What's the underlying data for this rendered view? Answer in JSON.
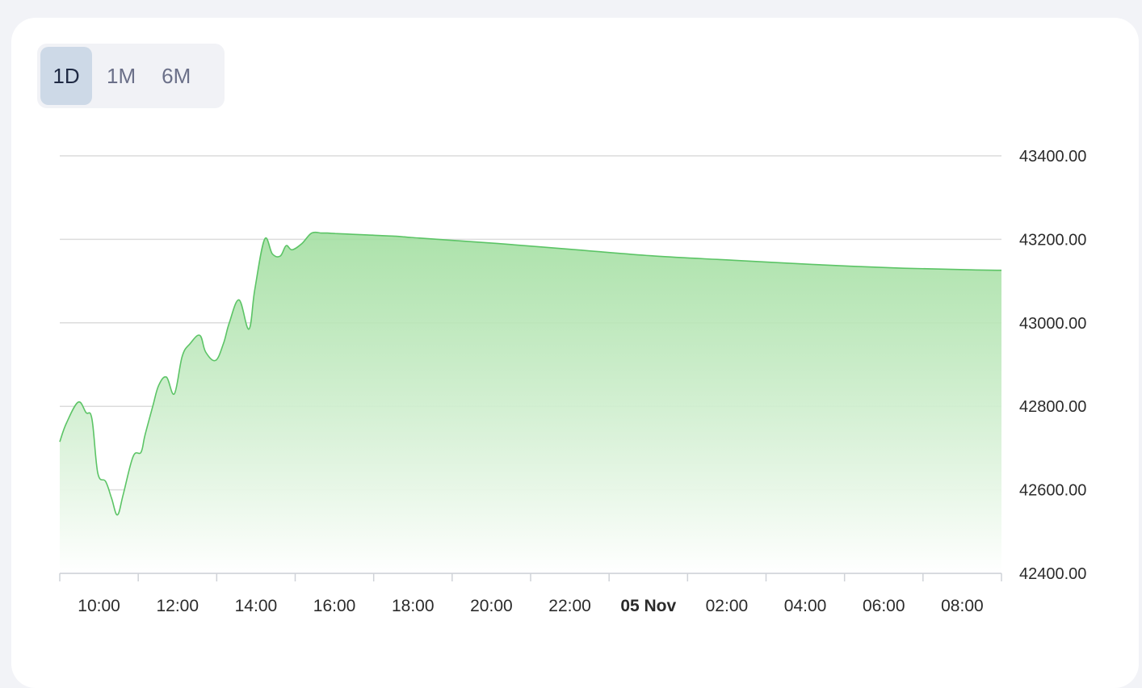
{
  "range_tabs": {
    "items": [
      {
        "label": "1D",
        "active": true
      },
      {
        "label": "1M",
        "active": false
      },
      {
        "label": "6M",
        "active": false
      }
    ]
  },
  "colors": {
    "line": "#5cc466",
    "fill_top": "#9edd9c",
    "fill_bottom": "#ffffff",
    "grid": "#dcdcdc",
    "tab_active_bg": "#cdd9e7"
  },
  "chart_data": {
    "type": "area",
    "ylim": [
      42400,
      43400
    ],
    "yticks": [
      "43400.00",
      "43200.00",
      "43000.00",
      "42800.00",
      "42600.00",
      "42400.00"
    ],
    "ytick_values": [
      43400,
      43200,
      43000,
      42800,
      42600,
      42400
    ],
    "xlim_hours": [
      8.83,
      32.83
    ],
    "xticks": [
      {
        "label": "10:00",
        "hour": 10,
        "bold": false
      },
      {
        "label": "12:00",
        "hour": 12,
        "bold": false
      },
      {
        "label": "14:00",
        "hour": 14,
        "bold": false
      },
      {
        "label": "16:00",
        "hour": 16,
        "bold": false
      },
      {
        "label": "18:00",
        "hour": 18,
        "bold": false
      },
      {
        "label": "20:00",
        "hour": 20,
        "bold": false
      },
      {
        "label": "22:00",
        "hour": 22,
        "bold": false
      },
      {
        "label": "05 Nov",
        "hour": 24,
        "bold": true
      },
      {
        "label": "02:00",
        "hour": 26,
        "bold": false
      },
      {
        "label": "04:00",
        "hour": 28,
        "bold": false
      },
      {
        "label": "06:00",
        "hour": 30,
        "bold": false
      },
      {
        "label": "08:00",
        "hour": 32,
        "bold": false
      }
    ],
    "grid": true,
    "series": [
      {
        "x": [
          8.83,
          9.0,
          9.3,
          9.5,
          9.65,
          9.8,
          10.0,
          10.15,
          10.3,
          10.45,
          10.7,
          10.9,
          11.0,
          11.2,
          11.35,
          11.55,
          11.75,
          11.95,
          12.15,
          12.4,
          12.55,
          12.8,
          13.0,
          13.15,
          13.4,
          13.65,
          13.8,
          14.05,
          14.25,
          14.45,
          14.6,
          14.75,
          15.0,
          15.25,
          15.5,
          15.65,
          15.85,
          16.1,
          16.3,
          16.55,
          16.8,
          17.0,
          17.3,
          17.6,
          18.0,
          20.0,
          22.0,
          24.0,
          26.0,
          28.0,
          30.0,
          32.0,
          32.83
        ],
        "y": [
          42715,
          42760,
          42810,
          42785,
          42770,
          42640,
          42620,
          42580,
          42540,
          42590,
          42680,
          42690,
          42730,
          42800,
          42850,
          42870,
          42830,
          42920,
          42950,
          42970,
          42930,
          42910,
          42950,
          43000,
          43055,
          42985,
          43080,
          43200,
          43165,
          43160,
          43185,
          43175,
          43190,
          43215,
          43215,
          43215,
          43214,
          43213,
          43212,
          43211,
          43210,
          43209,
          43208,
          43206,
          43203,
          43190,
          43175,
          43160,
          43150,
          43140,
          43132,
          43127,
          43126
        ]
      }
    ]
  }
}
